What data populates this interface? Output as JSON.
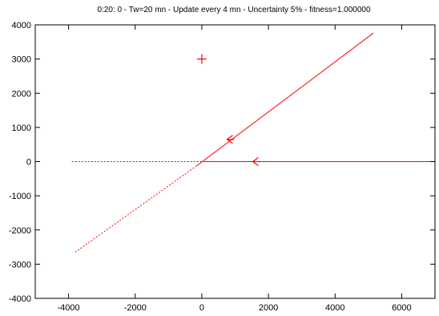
{
  "chart_data": {
    "type": "line",
    "title": "0:20: 0 - Tw=20 mn - Update every 4 mn - Uncertainty 5% - fitness=1.000000",
    "xlabel": "",
    "ylabel": "",
    "xlim": [
      -5000,
      7000
    ],
    "ylim": [
      -4000,
      4000
    ],
    "xticks": [
      -4000,
      -2000,
      0,
      2000,
      4000,
      6000
    ],
    "yticks": [
      -4000,
      -3000,
      -2000,
      -1000,
      0,
      1000,
      2000,
      3000,
      4000
    ],
    "grid": false,
    "legend": "none",
    "color": "#ff0000",
    "series": [
      {
        "style": "solid",
        "x": [
          -150,
          5150
        ],
        "y": [
          -120,
          3760
        ]
      },
      {
        "style": "dashed",
        "x": [
          -3800,
          -150
        ],
        "y": [
          -2650,
          -120
        ]
      },
      {
        "style": "solid",
        "x": [
          50,
          6850
        ],
        "y": [
          0,
          0
        ]
      },
      {
        "style": "dashed",
        "x": [
          -3900,
          50
        ],
        "y": [
          0,
          0
        ]
      }
    ],
    "markers": [
      {
        "symbol": "plus",
        "x": 0,
        "y": 3000
      },
      {
        "symbol": "arrow-left",
        "x": 830,
        "y": 650
      },
      {
        "symbol": "arrow-left",
        "x": 1600,
        "y": 0
      }
    ]
  }
}
